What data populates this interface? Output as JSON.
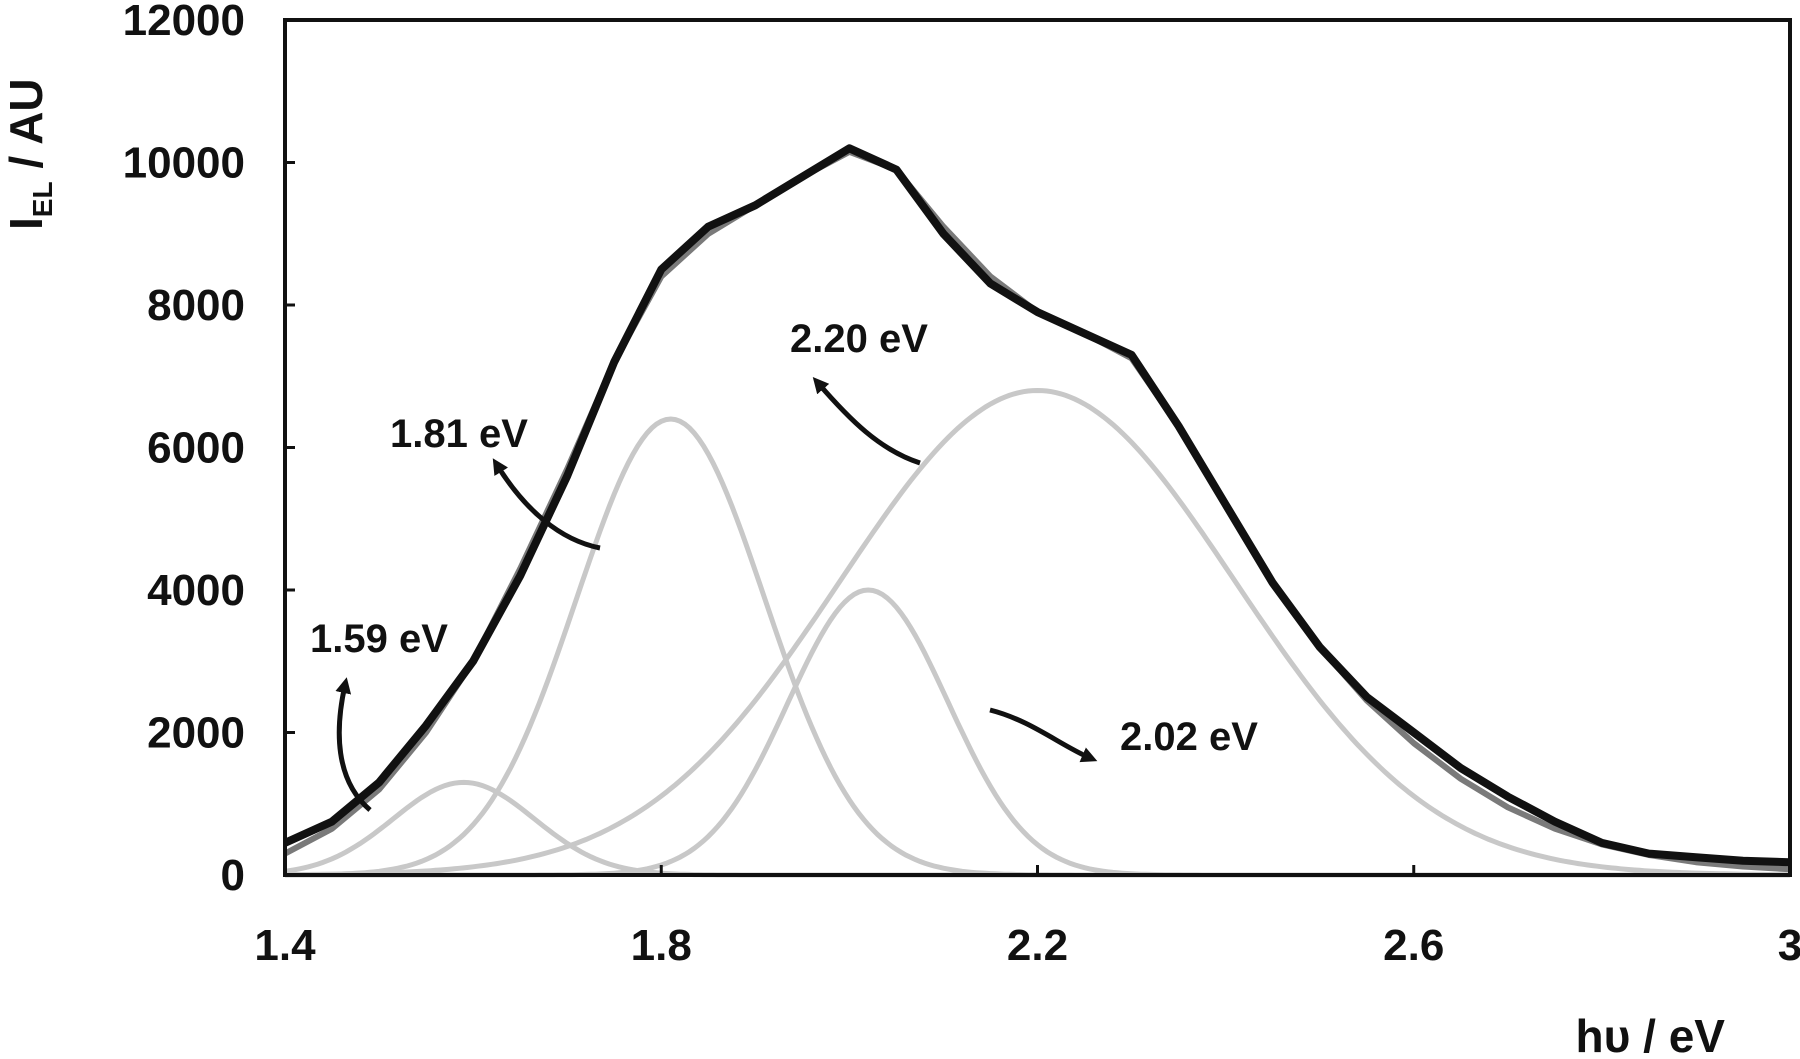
{
  "chart_data": {
    "type": "line",
    "title": "",
    "xlabel": "hυ / eV",
    "ylabel_main": "I",
    "ylabel_sub": "EL",
    "ylabel_rest": " / AU",
    "xlim": [
      1.4,
      3.0
    ],
    "ylim": [
      0,
      12000
    ],
    "x_ticks": [
      1.4,
      1.8,
      2.2,
      2.6,
      3.0
    ],
    "x_tick_labels": [
      "1.4",
      "1.8",
      "2.2",
      "2.6",
      "3"
    ],
    "y_ticks": [
      0,
      2000,
      4000,
      6000,
      8000,
      10000,
      12000
    ],
    "y_tick_labels": [
      "0",
      "2000",
      "4000",
      "6000",
      "8000",
      "10000",
      "12000"
    ],
    "grid": false,
    "legend": "none",
    "series": [
      {
        "role": "measured",
        "color": "#111111",
        "x": [
          1.4,
          1.45,
          1.5,
          1.55,
          1.6,
          1.65,
          1.7,
          1.75,
          1.8,
          1.85,
          1.9,
          1.95,
          2.0,
          2.05,
          2.1,
          2.15,
          2.2,
          2.25,
          2.3,
          2.35,
          2.4,
          2.45,
          2.5,
          2.55,
          2.6,
          2.65,
          2.7,
          2.75,
          2.8,
          2.85,
          2.9,
          2.95,
          3.0
        ],
        "y": [
          450,
          750,
          1300,
          2100,
          3000,
          4200,
          5600,
          7200,
          8500,
          9100,
          9400,
          9800,
          10200,
          9900,
          9000,
          8300,
          7900,
          7600,
          7300,
          6300,
          5200,
          4100,
          3200,
          2500,
          2000,
          1500,
          1100,
          750,
          450,
          300,
          250,
          200,
          180
        ]
      },
      {
        "role": "fit",
        "color": "#7a7a7a",
        "x": [
          1.4,
          1.45,
          1.5,
          1.55,
          1.6,
          1.65,
          1.7,
          1.75,
          1.8,
          1.85,
          1.9,
          1.95,
          2.0,
          2.05,
          2.1,
          2.15,
          2.2,
          2.25,
          2.3,
          2.35,
          2.4,
          2.45,
          2.5,
          2.55,
          2.6,
          2.65,
          2.7,
          2.75,
          2.8,
          2.85,
          2.9,
          2.95,
          3.0
        ],
        "y": [
          300,
          650,
          1200,
          2000,
          3000,
          4300,
          5700,
          7200,
          8400,
          9000,
          9400,
          9800,
          10150,
          9900,
          9100,
          8400,
          7900,
          7600,
          7250,
          6300,
          5200,
          4100,
          3200,
          2450,
          1850,
          1350,
          950,
          650,
          430,
          280,
          180,
          120,
          80
        ]
      }
    ],
    "components": [
      {
        "label": "1.59 eV",
        "center": 1.59,
        "amplitude": 1300,
        "sigma": 0.075,
        "color": "#c8c8c8"
      },
      {
        "label": "1.81 eV",
        "center": 1.81,
        "amplitude": 6400,
        "sigma": 0.1,
        "color": "#c8c8c8"
      },
      {
        "label": "2.02 eV",
        "center": 2.02,
        "amplitude": 4000,
        "sigma": 0.085,
        "color": "#c8c8c8"
      },
      {
        "label": "2.20 eV",
        "center": 2.2,
        "amplitude": 6800,
        "sigma": 0.21,
        "color": "#c8c8c8"
      }
    ]
  }
}
